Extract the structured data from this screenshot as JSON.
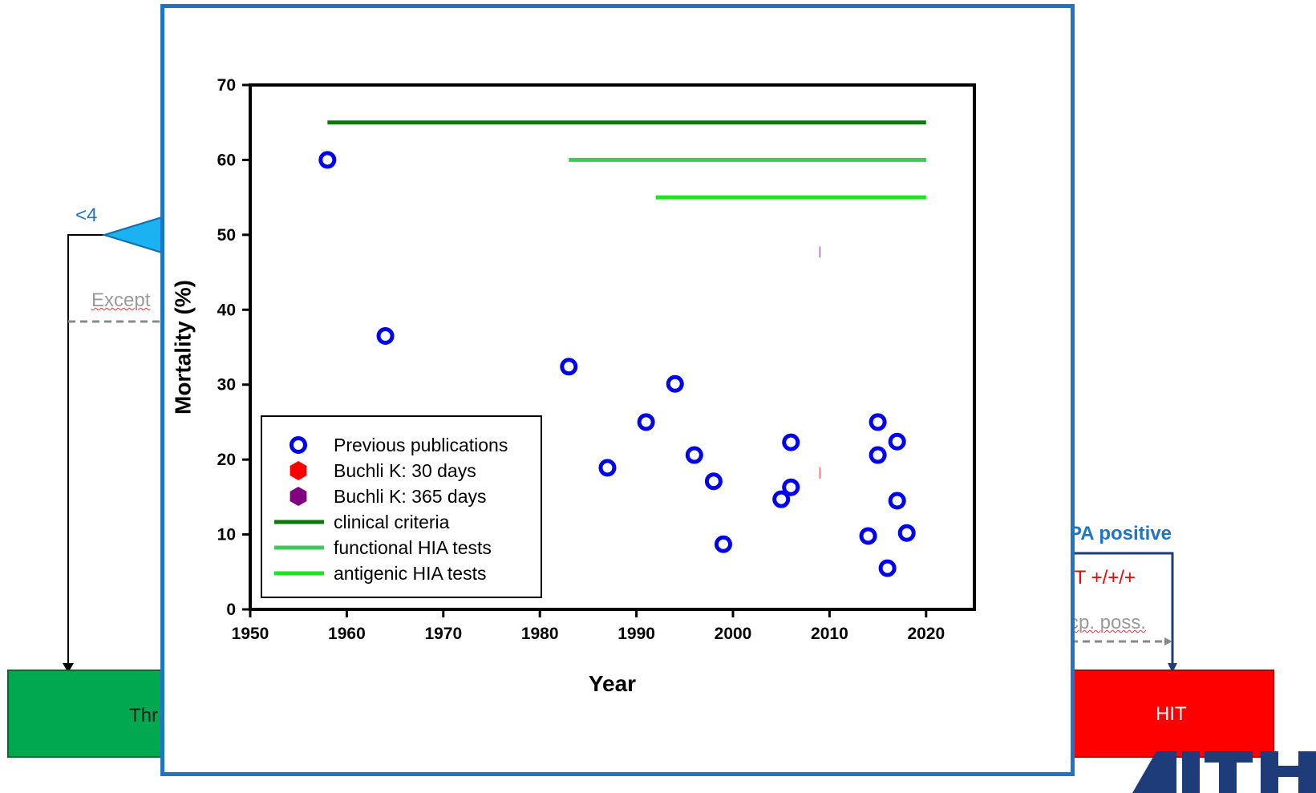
{
  "background": {
    "left_label": "<4",
    "left_label_color": "#1f74c4",
    "exception_text": "Except",
    "green_box_text": "Thr",
    "green_box_color": "#00a84f",
    "pa_text": "PA positive",
    "pa_color": "#1f74c4",
    "hit_plus_text": "IT +/+/+",
    "exc_poss_text": "cp. poss.",
    "red_box_text": "HIT",
    "red_box_color": "#ff0000",
    "logo_icon": "institution-logo-icon"
  },
  "chart_data": {
    "type": "scatter",
    "xlabel": "Year",
    "ylabel": "Mortality (%)",
    "xlim": [
      1950,
      2025
    ],
    "ylim": [
      0,
      70
    ],
    "xticks": [
      1950,
      1960,
      1970,
      1980,
      1990,
      2000,
      2010,
      2020
    ],
    "yticks": [
      0,
      10,
      20,
      30,
      40,
      50,
      60,
      70
    ],
    "grid": false,
    "legend_position": "bottom-left",
    "series": [
      {
        "name": "Previous publications",
        "kind": "points",
        "marker": "circle-open",
        "color": "#0000ee",
        "points": [
          [
            1958,
            60.0
          ],
          [
            1964,
            36.5
          ],
          [
            1983,
            32.4
          ],
          [
            1987,
            18.9
          ],
          [
            1991,
            25.0
          ],
          [
            1994,
            30.1
          ],
          [
            1996,
            20.6
          ],
          [
            1998,
            17.1
          ],
          [
            1999,
            8.7
          ],
          [
            2005,
            14.7
          ],
          [
            2006,
            22.3
          ],
          [
            2006,
            16.3
          ],
          [
            2014,
            9.8
          ],
          [
            2015,
            25.0
          ],
          [
            2015,
            20.6
          ],
          [
            2016,
            5.5
          ],
          [
            2017,
            22.4
          ],
          [
            2017,
            14.5
          ],
          [
            2018,
            10.2
          ]
        ]
      },
      {
        "name": "Buchli K: 30 days",
        "kind": "points",
        "marker": "hexagon",
        "color": "#ff0000",
        "points": [
          [
            2009,
            18.2
          ]
        ]
      },
      {
        "name": "Buchli K: 365 days",
        "kind": "points",
        "marker": "hexagon",
        "color": "#800080",
        "points": [
          [
            2009,
            47.7
          ]
        ]
      },
      {
        "name": "clinical criteria",
        "kind": "hline",
        "color": "#0b7a0b",
        "y": 65,
        "x_range": [
          1958,
          2020
        ]
      },
      {
        "name": "functional HIA tests",
        "kind": "hline",
        "color": "#3ec95a",
        "y": 60,
        "x_range": [
          1983,
          2020
        ]
      },
      {
        "name": "antigenic HIA tests",
        "kind": "hline",
        "color": "#19e61c",
        "y": 55,
        "x_range": [
          1992,
          2020
        ]
      }
    ]
  }
}
